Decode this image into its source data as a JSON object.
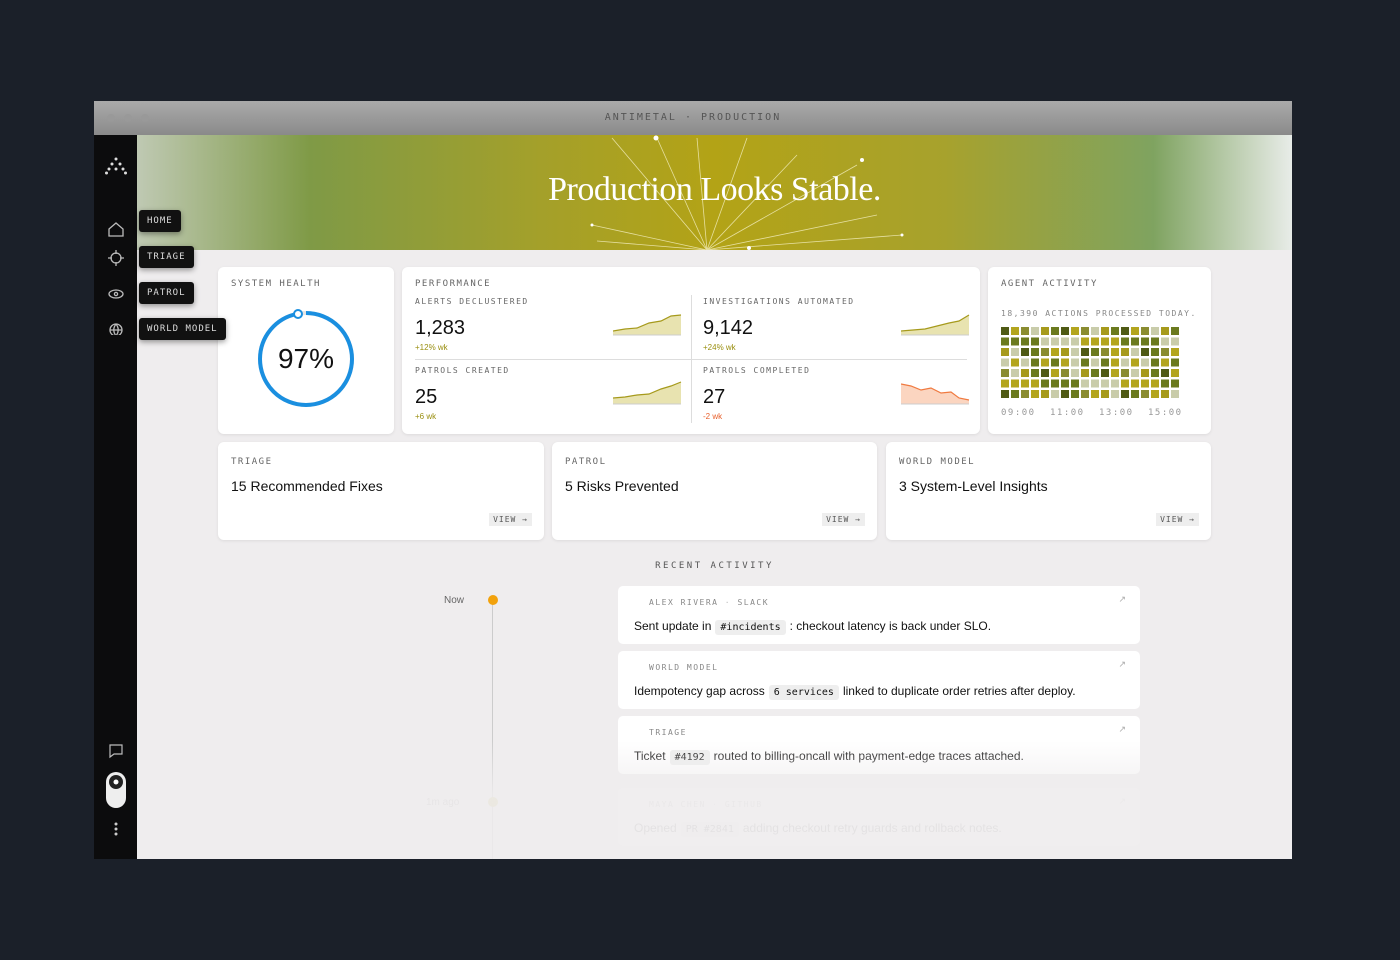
{
  "window": {
    "title": "ANTIMETAL · PRODUCTION"
  },
  "nav": [
    "HOME",
    "TRIAGE",
    "PATROL",
    "WORLD MODEL"
  ],
  "hero": {
    "title": "Production Looks Stable."
  },
  "system_health": {
    "label": "SYSTEM HEALTH",
    "value": "97%"
  },
  "performance": {
    "label": "PERFORMANCE",
    "metrics": [
      {
        "label": "ALERTS DECLUSTERED",
        "value": "1,283",
        "delta": "+12% wk"
      },
      {
        "label": "INVESTIGATIONS AUTOMATED",
        "value": "9,142",
        "delta": "+24% wk"
      },
      {
        "label": "PATROLS CREATED",
        "value": "25",
        "delta": "+6 wk"
      },
      {
        "label": "PATROLS COMPLETED",
        "value": "27",
        "delta": "-2 wk"
      }
    ]
  },
  "agent_activity": {
    "label": "AGENT ACTIVITY",
    "subtitle": "18,390 ACTIONS PROCESSED TODAY.",
    "times": [
      "09:00",
      "11:00",
      "13:00",
      "15:00"
    ]
  },
  "cards": [
    {
      "label": "TRIAGE",
      "title": "15 Recommended Fixes",
      "action": "VIEW"
    },
    {
      "label": "PATROL",
      "title": "5 Risks Prevented",
      "action": "VIEW"
    },
    {
      "label": "WORLD MODEL",
      "title": "3 System-Level Insights",
      "action": "VIEW"
    }
  ],
  "recent_activity": {
    "label": "RECENT ACTIVITY",
    "items": [
      {
        "time": "Now",
        "source": "ALEX RIVERA",
        "channel": "SLACK",
        "text": [
          "Sent update in",
          "#incidents",
          ": checkout latency is back under SLO."
        ]
      },
      {
        "source": "WORLD MODEL",
        "text": [
          "Idempotency gap across",
          "6 services",
          "linked to duplicate order retries after deploy."
        ]
      },
      {
        "source": "TRIAGE",
        "text": [
          "Ticket",
          "#4192",
          "routed to billing-oncall with payment-edge traces attached."
        ]
      },
      {
        "time": "1m ago",
        "source": "MAYA CHEN",
        "channel": "GITHUB",
        "text": [
          "Opened",
          "PR #2841",
          "adding checkout retry guards and rollback notes."
        ]
      }
    ]
  }
}
